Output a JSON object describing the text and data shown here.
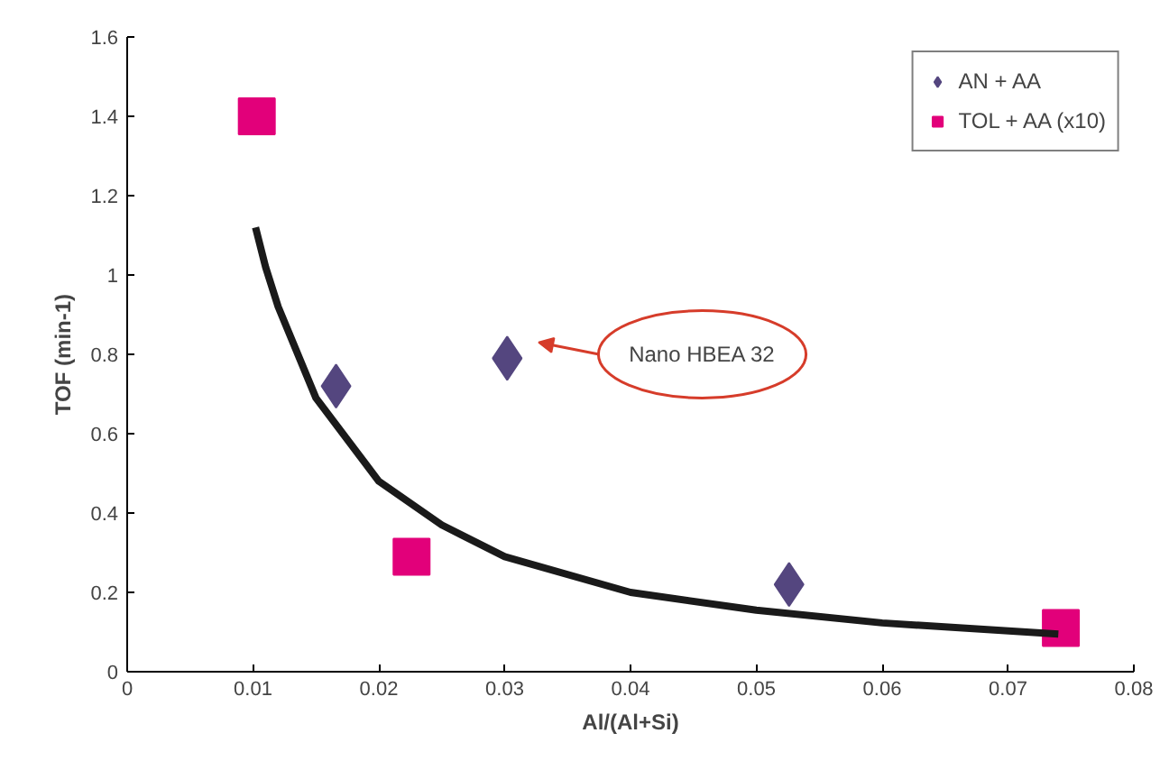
{
  "chart_data": {
    "type": "scatter",
    "xlabel": "Al/(Al+Si)",
    "ylabel": "TOF (min-1)",
    "xlim": [
      0,
      0.08
    ],
    "xticks": [
      0,
      0.01,
      0.02,
      0.03,
      0.04,
      0.05,
      0.06,
      0.07,
      0.08
    ],
    "ylim": [
      0,
      1.6
    ],
    "yticks": [
      0,
      0.2,
      0.4,
      0.6,
      0.8,
      1,
      1.2,
      1.4,
      1.6
    ],
    "grid": false,
    "legend": "top right",
    "series": [
      {
        "name": "AN + AA",
        "color": "#54467f",
        "marker": "diamond",
        "x": [
          0.0166,
          0.0302,
          0.0526
        ],
        "values": [
          0.72,
          0.79,
          0.22
        ]
      },
      {
        "name": "TOL + AA (x10)",
        "color": "#e2007a",
        "marker": "square",
        "x": [
          0.0103,
          0.0226,
          0.0742
        ],
        "values": [
          1.4,
          0.29,
          0.11
        ]
      },
      {
        "type": "line",
        "color": "#1a1a1a",
        "x": [
          0.0102,
          0.011,
          0.012,
          0.015,
          0.02,
          0.025,
          0.03,
          0.04,
          0.05,
          0.06,
          0.074
        ],
        "values": [
          1.12,
          1.02,
          0.92,
          0.69,
          0.48,
          0.37,
          0.29,
          0.2,
          0.155,
          0.123,
          0.095
        ]
      }
    ],
    "annotations": [
      "Nano HBEA 32"
    ]
  }
}
